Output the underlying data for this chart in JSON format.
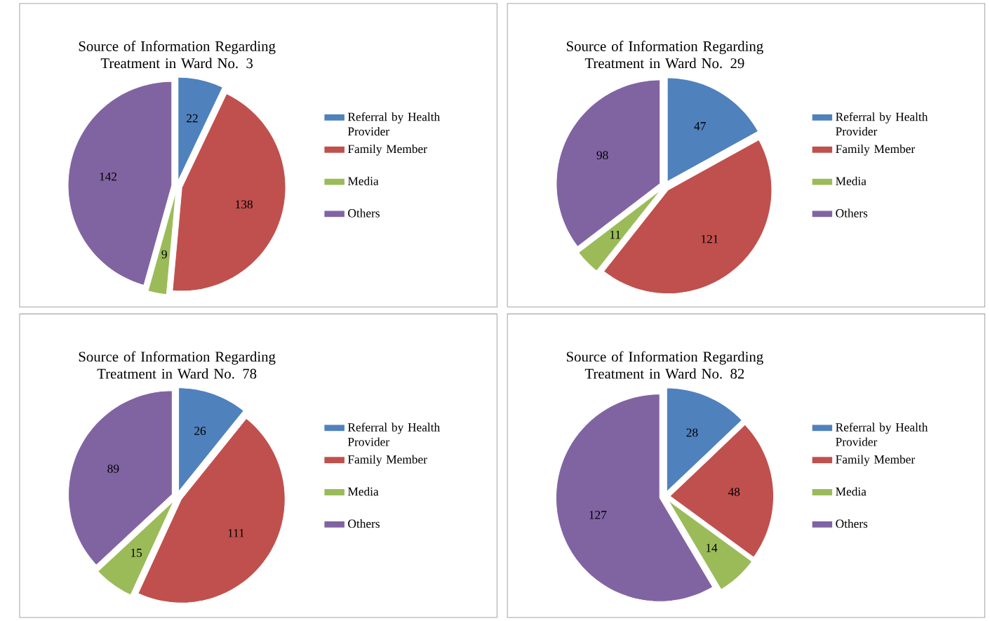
{
  "chart_data": [
    {
      "type": "pie",
      "title": "Source of Information  Regarding Treatment in Ward No. 3",
      "categories": [
        "Referral by Health Provider",
        "Family Member",
        "Media",
        "Others"
      ],
      "values": [
        22,
        138,
        9,
        142
      ],
      "colors": [
        "#4f81bd",
        "#c0504d",
        "#9bbb59",
        "#8064a2"
      ],
      "data_labels": true,
      "legend": "right"
    },
    {
      "type": "pie",
      "title": "Source of Information  Regarding Treatment in Ward No. 29",
      "categories": [
        "Referral by Health Provider",
        "Family Member",
        "Media",
        "Others"
      ],
      "values": [
        47,
        121,
        11,
        98
      ],
      "colors": [
        "#4f81bd",
        "#c0504d",
        "#9bbb59",
        "#8064a2"
      ],
      "data_labels": true,
      "legend": "right"
    },
    {
      "type": "pie",
      "title": "Source of Information  Regarding Treatment in Ward No. 78",
      "categories": [
        "Referral by Health Provider",
        "Family Member",
        "Media",
        "Others"
      ],
      "values": [
        26,
        111,
        15,
        89
      ],
      "colors": [
        "#4f81bd",
        "#c0504d",
        "#9bbb59",
        "#8064a2"
      ],
      "data_labels": true,
      "legend": "right"
    },
    {
      "type": "pie",
      "title": "Source of Information  Regarding Treatment in Ward No. 82",
      "categories": [
        "Referral by Health Provider",
        "Family Member",
        "Media",
        "Others"
      ],
      "values": [
        28,
        48,
        14,
        127
      ],
      "colors": [
        "#4f81bd",
        "#c0504d",
        "#9bbb59",
        "#8064a2"
      ],
      "data_labels": true,
      "legend": "right"
    }
  ]
}
